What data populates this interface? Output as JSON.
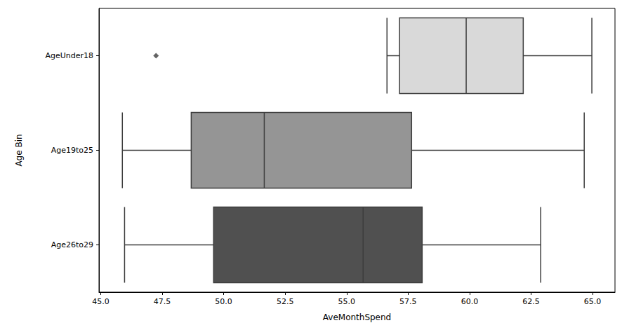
{
  "chart_data": {
    "type": "boxplot",
    "orientation": "horizontal",
    "x_label": "AveMonthSpend",
    "y_label": "Age Bin",
    "categories": [
      "AgeUnder18",
      "Age19to25",
      "Age26to29"
    ],
    "values": [
      [
        56.64,
        57.15,
        59.86,
        62.18,
        64.97
      ],
      [
        45.88,
        48.68,
        51.65,
        57.64,
        64.66
      ],
      [
        45.97,
        49.59,
        55.67,
        58.07,
        62.89
      ]
    ],
    "outliers": [
      [
        47.25
      ],
      [],
      []
    ],
    "colors": [
      "#d9d9d9",
      "#959595",
      "#505050"
    ],
    "marker": "diamond",
    "xlim": [
      44.93,
      65.91
    ],
    "xticks": [
      {
        "value": 45,
        "label": "45.0"
      },
      {
        "value": 47.5,
        "label": "47.5"
      },
      {
        "value": 50,
        "label": "50.0"
      },
      {
        "value": 52.5,
        "label": "52.5"
      },
      {
        "value": 55,
        "label": "55.0"
      },
      {
        "value": 57.5,
        "label": "57.5"
      },
      {
        "value": 60,
        "label": "60.0"
      },
      {
        "value": 62.5,
        "label": "62.5"
      },
      {
        "value": 65,
        "label": "65.0"
      }
    ],
    "grid": false
  }
}
